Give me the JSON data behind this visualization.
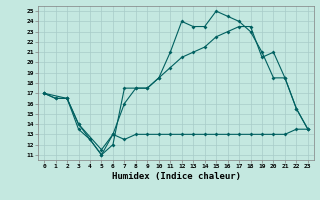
{
  "xlabel": "Humidex (Indice chaleur)",
  "background_color": "#c4e8e0",
  "line_color": "#006060",
  "grid_color": "#a8ccc8",
  "xlim": [
    -0.5,
    23.5
  ],
  "ylim": [
    10.5,
    25.5
  ],
  "xticks": [
    0,
    1,
    2,
    3,
    4,
    5,
    6,
    7,
    8,
    9,
    10,
    11,
    12,
    13,
    14,
    15,
    16,
    17,
    18,
    19,
    20,
    21,
    22,
    23
  ],
  "yticks": [
    11,
    12,
    13,
    14,
    15,
    16,
    17,
    18,
    19,
    20,
    21,
    22,
    23,
    24,
    25
  ],
  "line1_x": [
    0,
    1,
    2,
    3,
    4,
    5,
    6,
    7,
    8,
    9,
    10,
    11,
    12,
    13,
    14,
    15,
    16,
    17,
    18,
    19,
    20,
    21,
    22,
    23
  ],
  "line1_y": [
    17.0,
    16.5,
    16.5,
    14.0,
    12.5,
    11.0,
    12.0,
    17.5,
    17.5,
    17.5,
    18.5,
    21.0,
    24.0,
    23.5,
    23.5,
    25.0,
    24.5,
    24.0,
    23.0,
    21.0,
    18.5,
    18.5,
    15.5,
    13.5
  ],
  "line2_x": [
    0,
    2,
    3,
    5,
    6,
    7,
    8,
    9,
    10,
    11,
    12,
    13,
    14,
    15,
    16,
    17,
    18,
    19,
    20,
    21,
    22,
    23
  ],
  "line2_y": [
    17.0,
    16.5,
    14.0,
    11.5,
    13.0,
    16.0,
    17.5,
    17.5,
    18.5,
    19.5,
    20.5,
    21.0,
    21.5,
    22.5,
    23.0,
    23.5,
    23.5,
    20.5,
    21.0,
    18.5,
    15.5,
    13.5
  ],
  "line3_x": [
    0,
    1,
    2,
    3,
    4,
    5,
    6,
    7,
    8,
    9,
    10,
    11,
    12,
    13,
    14,
    15,
    16,
    17,
    18,
    19,
    20,
    21,
    22,
    23
  ],
  "line3_y": [
    17.0,
    16.5,
    16.5,
    13.5,
    12.5,
    11.0,
    13.0,
    12.5,
    13.0,
    13.0,
    13.0,
    13.0,
    13.0,
    13.0,
    13.0,
    13.0,
    13.0,
    13.0,
    13.0,
    13.0,
    13.0,
    13.0,
    13.5,
    13.5
  ]
}
